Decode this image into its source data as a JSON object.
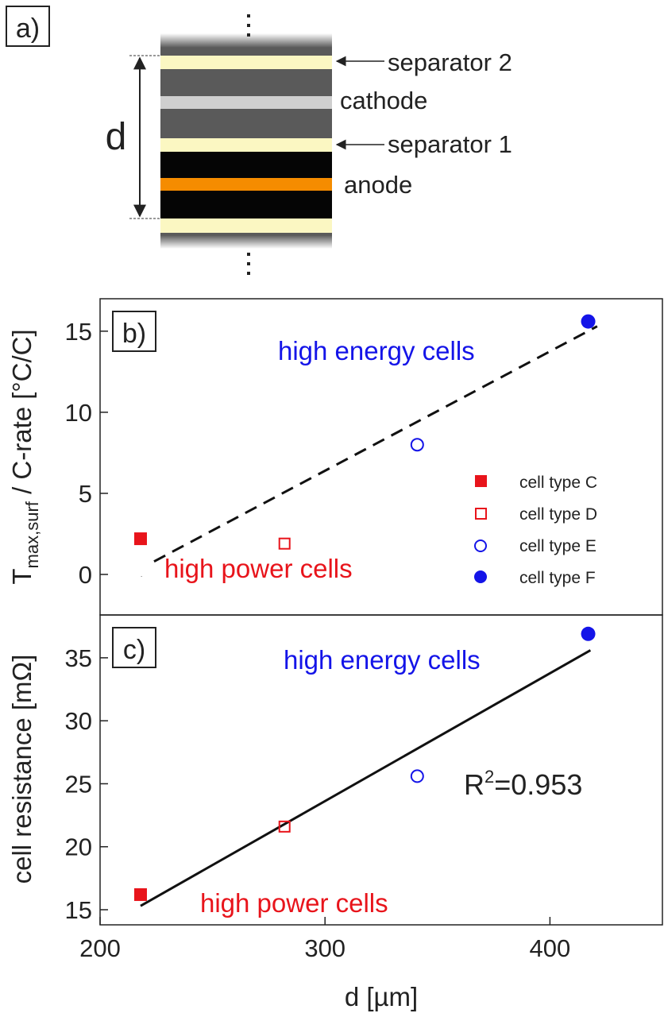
{
  "panel_a": {
    "label": "a)",
    "d_label": "d",
    "layer_labels": {
      "separator2": "separator 2",
      "cathode": "cathode",
      "separator1": "separator 1",
      "anode": "anode"
    },
    "colors": {
      "separator": "#fbf7c2",
      "cathode": "#5a5a5a",
      "current_collector_cathode": "#cfcfcf",
      "anode": "#050505",
      "current_collector_anode": "#f58c00"
    }
  },
  "legend": [
    {
      "label": "cell type C",
      "marker": "filled-square",
      "color": "#e8141b"
    },
    {
      "label": "cell type D",
      "marker": "open-square",
      "color": "#e8141b"
    },
    {
      "label": "cell type E",
      "marker": "open-circle",
      "color": "#1414e8"
    },
    {
      "label": "cell type F",
      "marker": "filled-circle",
      "color": "#1414e8"
    }
  ],
  "chart_data": [
    {
      "type": "scatter",
      "panel_label": "b)",
      "ylabel_main": "T",
      "ylabel_sub": "max,surf",
      "ylabel_rest": " / C-rate [°C/C]",
      "ylim": [
        -2.5,
        17
      ],
      "yticks": [
        0,
        5,
        10,
        15
      ],
      "xlim": [
        200,
        450
      ],
      "points": [
        {
          "x": 218,
          "y": 2.2,
          "marker": "filled-square",
          "color": "#e8141b"
        },
        {
          "x": 282,
          "y": 1.9,
          "marker": "open-square",
          "color": "#e8141b"
        },
        {
          "x": 341,
          "y": 8.0,
          "marker": "open-circle",
          "color": "#1414e8"
        },
        {
          "x": 417,
          "y": 15.6,
          "marker": "filled-circle",
          "color": "#1414e8"
        }
      ],
      "fit": {
        "style": "dashed",
        "x": [
          224,
          421
        ],
        "y": [
          0.8,
          15.3
        ]
      },
      "annotations": [
        {
          "text": "high energy cells",
          "color": "#1414e8"
        },
        {
          "text": "high power cells",
          "color": "#e8141b"
        }
      ],
      "grid": false,
      "legend_position": "bottom-right"
    },
    {
      "type": "scatter",
      "panel_label": "c)",
      "ylabel": "cell resistance [mΩ]",
      "xlabel": "d [µm]",
      "ylim": [
        13.8,
        38.4
      ],
      "yticks": [
        15,
        20,
        25,
        30,
        35
      ],
      "xlim": [
        200,
        450
      ],
      "xticks": [
        200,
        300,
        400
      ],
      "points": [
        {
          "x": 218,
          "y": 16.2,
          "marker": "filled-square",
          "color": "#e8141b"
        },
        {
          "x": 282,
          "y": 21.6,
          "marker": "open-square",
          "color": "#e8141b"
        },
        {
          "x": 341,
          "y": 25.6,
          "marker": "open-circle",
          "color": "#1414e8"
        },
        {
          "x": 417,
          "y": 36.9,
          "marker": "filled-circle",
          "color": "#1414e8"
        }
      ],
      "fit": {
        "style": "solid",
        "x": [
          218,
          418
        ],
        "y": [
          15.3,
          35.6
        ]
      },
      "annotations": [
        {
          "text": "high energy cells",
          "color": "#1414e8"
        },
        {
          "text": "high power cells",
          "color": "#e8141b"
        },
        {
          "text_main": "R",
          "text_sup": "2",
          "text_rest": "=0.953",
          "color": "#222222"
        }
      ],
      "grid": false
    }
  ]
}
